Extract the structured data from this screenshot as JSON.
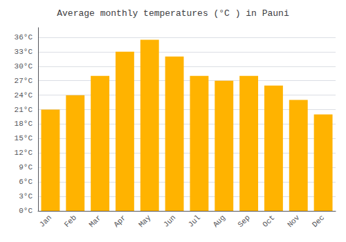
{
  "chart_data": {
    "type": "bar",
    "title": "Average monthly temperatures (°C ) in Pauni",
    "categories": [
      "Jan",
      "Feb",
      "Mar",
      "Apr",
      "May",
      "Jun",
      "Jul",
      "Aug",
      "Sep",
      "Oct",
      "Nov",
      "Dec"
    ],
    "values": [
      21,
      24,
      28,
      33,
      35.5,
      32.0,
      28,
      27,
      28,
      26,
      23,
      20
    ],
    "color": "#FFB300",
    "ylim": [
      0,
      38
    ],
    "yticks": [
      {
        "value": 0,
        "label": "0°C"
      },
      {
        "value": 3,
        "label": "3°C"
      },
      {
        "value": 6,
        "label": "6°C"
      },
      {
        "value": 9,
        "label": "9°C"
      },
      {
        "value": 12,
        "label": "12°C"
      },
      {
        "value": 15,
        "label": "15°C"
      },
      {
        "value": 18,
        "label": "18°C"
      },
      {
        "value": 21,
        "label": "21°C"
      },
      {
        "value": 24,
        "label": "24°C"
      },
      {
        "value": 27,
        "label": "27°C"
      },
      {
        "value": 30,
        "label": "30°C"
      },
      {
        "value": 33,
        "label": "33°C"
      },
      {
        "value": 36,
        "label": "36°C"
      }
    ],
    "grid": true
  }
}
